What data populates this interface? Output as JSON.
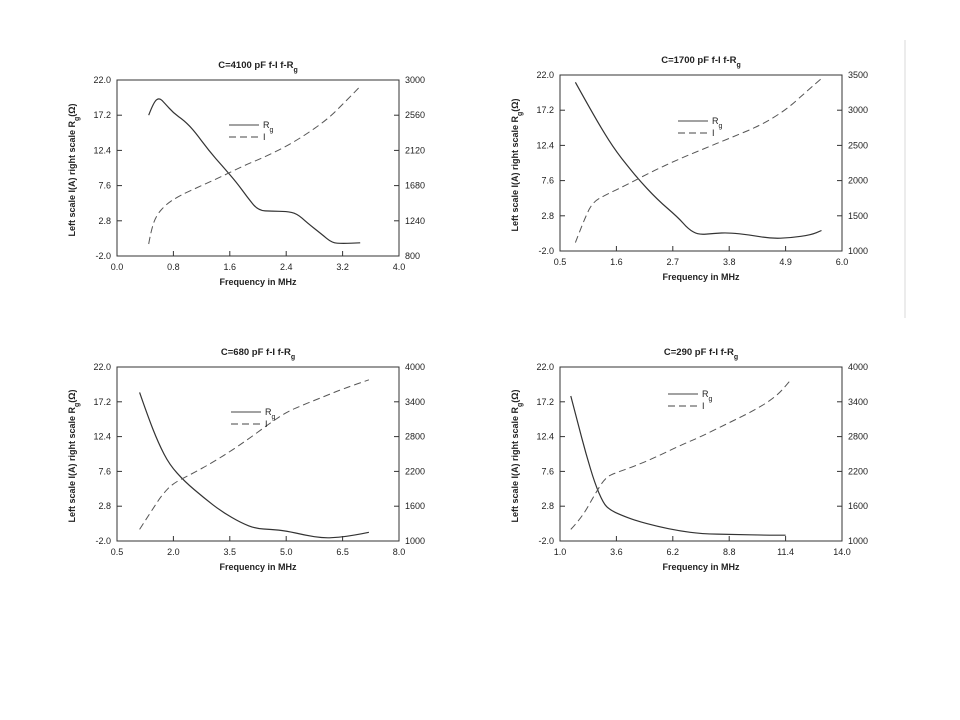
{
  "chart_data": [
    {
      "type": "line",
      "title": "C=4100 pF f-I f-R",
      "title_sub": "g",
      "xlabel": "Frequency in MHz",
      "ylabel": "Left scale I(A) right scale R",
      "ylabel_sub": "g",
      "ylabel_unit": "(Ω)",
      "xlim": [
        0.0,
        4.0
      ],
      "ylim": [
        -2.0,
        22.0
      ],
      "y2lim": [
        800,
        3000
      ],
      "x_ticks": [
        "0.0",
        "0.8",
        "1.6",
        "2.4",
        "3.2",
        "4.0"
      ],
      "y_ticks": [
        "-2.0",
        "2.8",
        "7.6",
        "12.4",
        "17.2",
        "22.0"
      ],
      "y2_ticks": [
        "800",
        "1240",
        "1680",
        "2120",
        "2560",
        "3000"
      ],
      "legend_position": "top-center",
      "series": [
        {
          "name": "R",
          "name_sub": "g",
          "axis": "left",
          "style": "solid",
          "x": [
            0.45,
            0.52,
            0.6,
            0.68,
            0.8,
            0.95,
            1.1,
            1.3,
            1.5,
            1.7,
            1.85,
            2.0,
            2.2,
            2.4,
            2.55,
            2.7,
            2.9,
            3.05,
            3.2,
            3.45
          ],
          "y": [
            17.2,
            19.0,
            19.6,
            18.8,
            17.5,
            16.5,
            15.0,
            12.4,
            10.2,
            8.0,
            6.0,
            4.2,
            4.1,
            4.1,
            3.8,
            2.5,
            1.0,
            -0.2,
            -0.3,
            -0.2
          ]
        },
        {
          "name": "I",
          "axis": "right",
          "style": "dashed",
          "x": [
            0.45,
            0.48,
            0.55,
            0.7,
            0.9,
            1.2,
            1.5,
            1.8,
            2.1,
            2.4,
            2.7,
            3.0,
            3.25,
            3.45
          ],
          "y": [
            950,
            1100,
            1300,
            1450,
            1560,
            1680,
            1800,
            1930,
            2040,
            2170,
            2330,
            2520,
            2740,
            2920
          ]
        }
      ]
    },
    {
      "type": "line",
      "title": "C=1700 pF f-I f-R",
      "title_sub": "g",
      "xlabel": "Frequency in MHz",
      "ylabel": "Left scale I(A) right scale R",
      "ylabel_sub": "g",
      "ylabel_unit": "(Ω)",
      "xlim": [
        0.5,
        6.0
      ],
      "ylim": [
        -2.0,
        22.0
      ],
      "y2lim": [
        1000,
        3500
      ],
      "x_ticks": [
        "0.5",
        "1.6",
        "2.7",
        "3.8",
        "4.9",
        "6.0"
      ],
      "y_ticks": [
        "-2.0",
        "2.8",
        "7.6",
        "12.4",
        "17.2",
        "22.0"
      ],
      "y2_ticks": [
        "1000",
        "1500",
        "2000",
        "2500",
        "3000",
        "3500"
      ],
      "legend_position": "top-right",
      "series": [
        {
          "name": "R",
          "name_sub": "g",
          "axis": "left",
          "style": "solid",
          "x": [
            0.8,
            1.0,
            1.3,
            1.6,
            2.0,
            2.4,
            2.8,
            3.0,
            3.2,
            3.5,
            3.8,
            4.2,
            4.6,
            5.0,
            5.4,
            5.6
          ],
          "y": [
            21.0,
            18.5,
            14.8,
            11.5,
            8.0,
            5.0,
            2.6,
            1.0,
            0.2,
            0.4,
            0.5,
            0.2,
            -0.3,
            -0.2,
            0.2,
            0.8
          ]
        },
        {
          "name": "I",
          "axis": "right",
          "style": "dashed",
          "x": [
            0.8,
            1.0,
            1.15,
            1.4,
            1.8,
            2.3,
            2.8,
            3.3,
            3.8,
            4.4,
            4.9,
            5.3,
            5.6
          ],
          "y": [
            1120,
            1500,
            1700,
            1800,
            1940,
            2130,
            2300,
            2450,
            2600,
            2780,
            3000,
            3260,
            3450
          ]
        }
      ]
    },
    {
      "type": "line",
      "title": "C=680 pF f-I f-R",
      "title_sub": "g",
      "xlabel": "Frequency in MHz",
      "ylabel": "Left scale I(A) right scale R",
      "ylabel_sub": "g",
      "ylabel_unit": "(Ω)",
      "xlim": [
        0.5,
        8.0
      ],
      "ylim": [
        -2.0,
        22.0
      ],
      "y2lim": [
        1000,
        4000
      ],
      "x_ticks": [
        "0.5",
        "2.0",
        "3.5",
        "5.0",
        "6.5",
        "8.0"
      ],
      "y_ticks": [
        "-2.0",
        "2.8",
        "7.6",
        "12.4",
        "17.2",
        "22.0"
      ],
      "y2_ticks": [
        "1000",
        "1600",
        "2200",
        "2800",
        "3400",
        "4000"
      ],
      "legend_position": "top-center",
      "series": [
        {
          "name": "R",
          "name_sub": "g",
          "axis": "left",
          "style": "solid",
          "x": [
            1.1,
            1.3,
            1.6,
            1.9,
            2.3,
            2.8,
            3.3,
            3.8,
            4.2,
            4.6,
            5.0,
            5.5,
            6.0,
            6.4,
            6.8,
            7.2
          ],
          "y": [
            18.5,
            15.5,
            11.5,
            8.5,
            6.2,
            4.0,
            2.0,
            0.5,
            -0.3,
            -0.4,
            -0.6,
            -1.2,
            -1.6,
            -1.5,
            -1.2,
            -0.8
          ]
        },
        {
          "name": "I",
          "axis": "right",
          "style": "dashed",
          "x": [
            1.1,
            1.4,
            1.7,
            2.0,
            2.5,
            3.0,
            3.5,
            4.0,
            4.5,
            5.0,
            5.5,
            6.0,
            6.5,
            7.2
          ],
          "y": [
            1200,
            1500,
            1800,
            2000,
            2160,
            2340,
            2540,
            2760,
            3000,
            3220,
            3360,
            3490,
            3620,
            3780
          ]
        }
      ]
    },
    {
      "type": "line",
      "title": "C=290 pF f-I f-R",
      "title_sub": "g",
      "xlabel": "Frequency in MHz",
      "ylabel": "Left scale I(A) right scale R",
      "ylabel_sub": "g",
      "ylabel_unit": "(Ω)",
      "xlim": [
        1.0,
        14.0
      ],
      "ylim": [
        -2.0,
        22.0
      ],
      "y2lim": [
        1000,
        4000
      ],
      "x_ticks": [
        "1.0",
        "3.6",
        "6.2",
        "8.8",
        "11.4",
        "14.0"
      ],
      "y_ticks": [
        "-2.0",
        "2.8",
        "7.6",
        "12.4",
        "17.2",
        "22.0"
      ],
      "y2_ticks": [
        "1000",
        "1600",
        "2200",
        "2800",
        "3400",
        "4000"
      ],
      "legend_position": "top-center",
      "series": [
        {
          "name": "R",
          "name_sub": "g",
          "axis": "left",
          "style": "solid",
          "x": [
            1.5,
            1.8,
            2.2,
            2.6,
            3.0,
            3.3,
            3.8,
            4.5,
            5.5,
            6.5,
            7.5,
            9.0,
            10.5,
            11.4
          ],
          "y": [
            18.0,
            14.5,
            10.0,
            6.0,
            3.2,
            2.3,
            1.6,
            0.8,
            0.0,
            -0.6,
            -1.0,
            -1.1,
            -1.2,
            -1.2
          ]
        },
        {
          "name": "I",
          "axis": "right",
          "style": "dashed",
          "x": [
            1.5,
            2.0,
            2.6,
            3.1,
            3.6,
            4.5,
            5.5,
            6.5,
            7.5,
            8.8,
            10.0,
            11.0,
            11.6
          ],
          "y": [
            1200,
            1400,
            1800,
            2100,
            2180,
            2300,
            2460,
            2640,
            2800,
            3040,
            3260,
            3500,
            3760
          ]
        }
      ]
    }
  ]
}
